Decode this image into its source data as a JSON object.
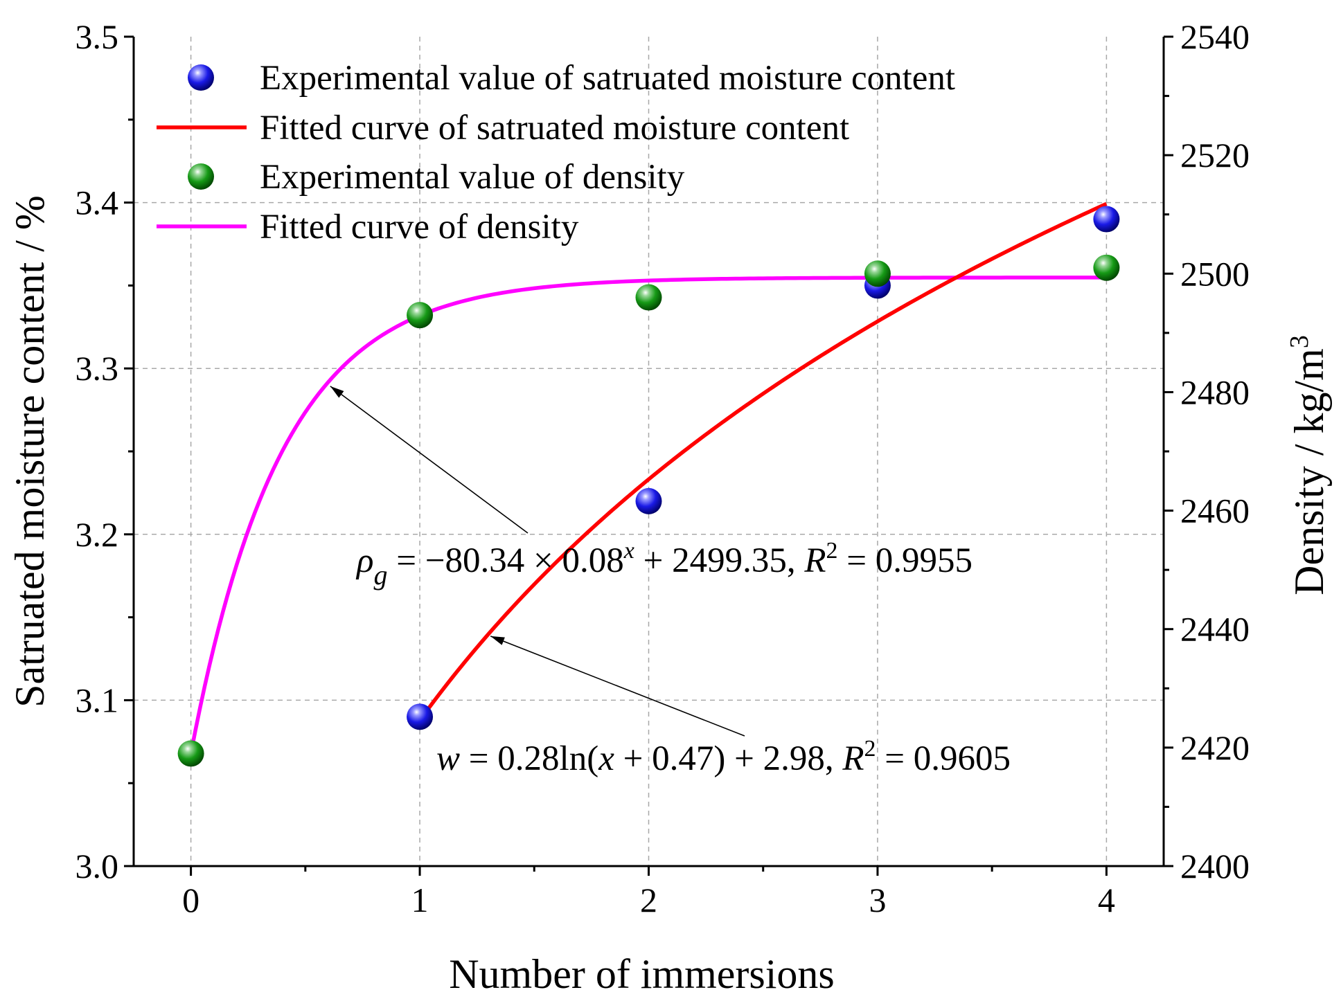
{
  "chart_data": {
    "type": "scatter",
    "xlabel": "Number of immersions",
    "ylabel_left": "Satruated moisture content / %",
    "ylabel_right_main": "Density / kg/m",
    "ylabel_right_sup": "3",
    "xlim": [
      -0.25,
      4.25
    ],
    "ylim_left": [
      3.0,
      3.5
    ],
    "ylim_right": [
      2400,
      2540
    ],
    "x_ticks": [
      0,
      1,
      2,
      3,
      4
    ],
    "x_tick_labels": [
      "0",
      "1",
      "2",
      "3",
      "4"
    ],
    "y_left_ticks": [
      3.0,
      3.1,
      3.2,
      3.3,
      3.4,
      3.5
    ],
    "y_left_tick_labels": [
      "3.0",
      "3.1",
      "3.2",
      "3.3",
      "3.4",
      "3.5"
    ],
    "y_right_ticks": [
      2400,
      2420,
      2440,
      2460,
      2480,
      2500,
      2520,
      2540
    ],
    "y_right_tick_labels": [
      "2400",
      "2420",
      "2440",
      "2460",
      "2480",
      "2500",
      "2520",
      "2540"
    ],
    "grid": true,
    "legend_position": "top-left",
    "series": [
      {
        "name": "Experimental value of satruated moisture content",
        "kind": "points",
        "axis": "left",
        "color": "#0a0ae0",
        "x": [
          1,
          2,
          3,
          4
        ],
        "y": [
          3.09,
          3.22,
          3.35,
          3.39
        ]
      },
      {
        "name": "Fitted curve of satruated moisture content",
        "kind": "line",
        "axis": "left",
        "color": "#ff0000",
        "x_range": [
          1,
          4
        ],
        "formula": "w = 0.28ln(x + 0.47) + 2.98"
      },
      {
        "name": "Experimental value of density",
        "kind": "points",
        "axis": "right",
        "color": "#0a8a0a",
        "x": [
          0,
          1,
          2,
          3,
          4
        ],
        "y": [
          2419,
          2493,
          2496,
          2500,
          2501
        ]
      },
      {
        "name": "Fitted curve of density",
        "kind": "line",
        "axis": "right",
        "color": "#ff00ff",
        "x_range": [
          0,
          4
        ],
        "formula": "rho_g = -80.34 x 0.08^x + 2499.35"
      }
    ],
    "annotations": [
      {
        "id": "density_eq",
        "target_series": "Fitted curve of density",
        "target_x": 0.6,
        "parts": [
          "ρ",
          "g",
          " = −80.34 × 0.08",
          "x",
          " + 2499.35, ",
          "R",
          "2",
          " = 0.9955"
        ]
      },
      {
        "id": "moisture_eq",
        "target_series": "Fitted curve of satruated moisture content",
        "target_x": 1.3,
        "parts": [
          "w",
          " = 0.28ln(",
          "x",
          " + 0.47) + 2.98, ",
          "R",
          "2",
          " = 0.9605"
        ]
      }
    ]
  }
}
